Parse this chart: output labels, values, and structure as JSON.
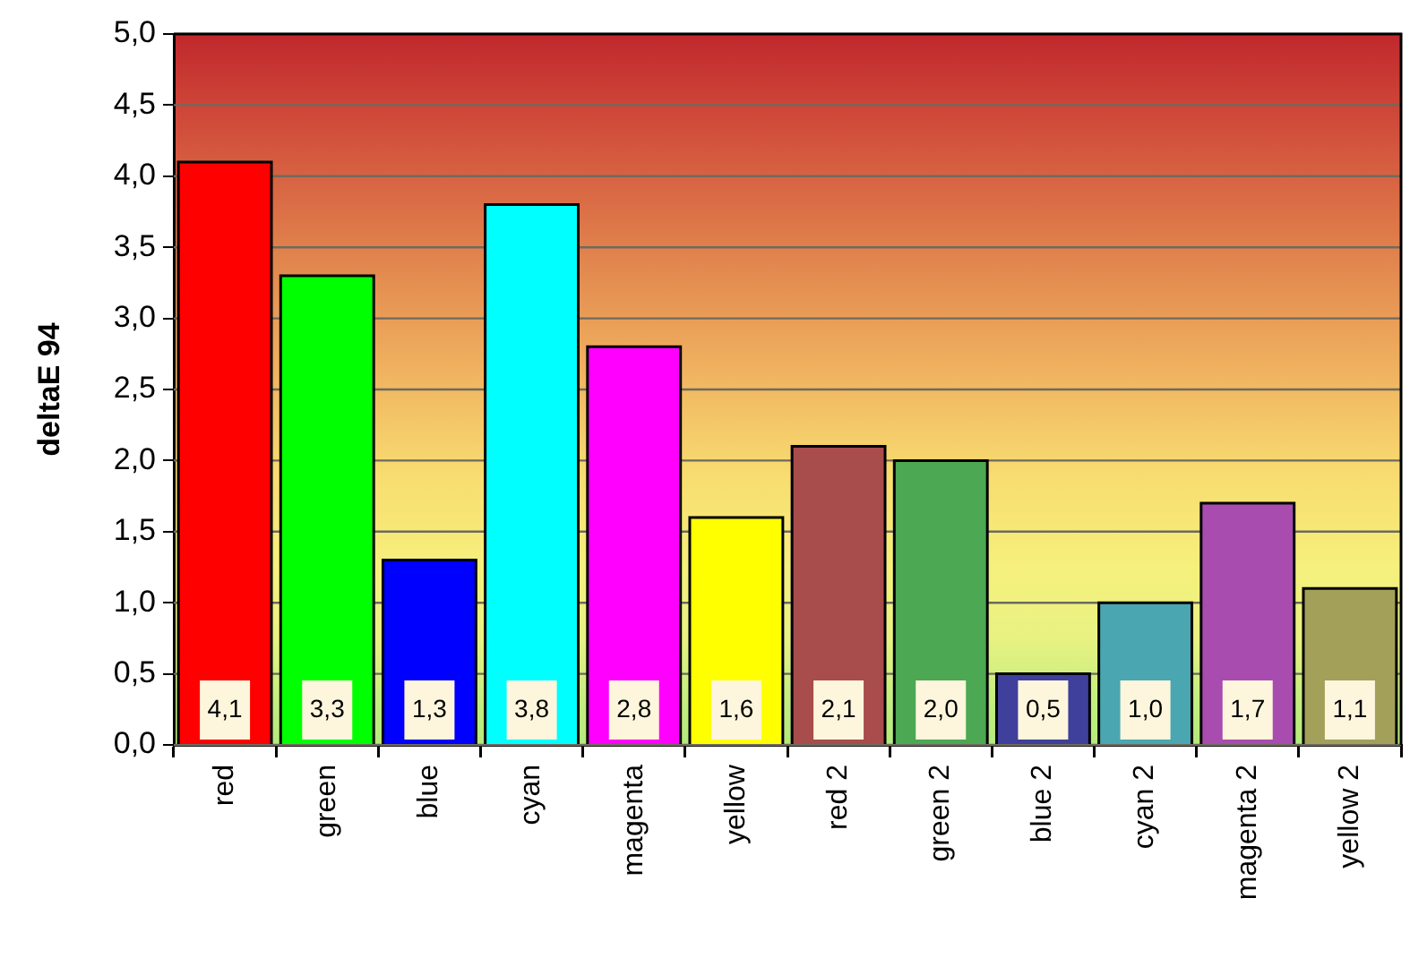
{
  "chart_data": {
    "type": "bar",
    "ylabel": "deltaE 94",
    "categories": [
      "red",
      "green",
      "blue",
      "cyan",
      "magenta",
      "yellow",
      "red 2",
      "green 2",
      "blue 2",
      "cyan 2",
      "magenta 2",
      "yellow 2"
    ],
    "values": [
      4.1,
      3.3,
      1.3,
      3.8,
      2.8,
      1.6,
      2.1,
      2.0,
      0.5,
      1.0,
      1.7,
      1.1
    ],
    "colors": [
      "#ff0000",
      "#00ff00",
      "#0000ff",
      "#00ffff",
      "#ff00ff",
      "#ffff00",
      "#a84c4c",
      "#4ca852",
      "#3f3f9c",
      "#4aa6b0",
      "#a84cb0",
      "#a3a05a"
    ],
    "value_labels": [
      "4,1",
      "3,3",
      "1,3",
      "3,8",
      "2,8",
      "1,6",
      "2,1",
      "2,0",
      "0,5",
      "1,0",
      "1,7",
      "1,1"
    ],
    "ylim": [
      0,
      5
    ],
    "yticks": [
      {
        "value": 0,
        "label": "0,0"
      },
      {
        "value": 0.5,
        "label": "0,5"
      },
      {
        "value": 1,
        "label": "1,0"
      },
      {
        "value": 1.5,
        "label": "1,5"
      },
      {
        "value": 2,
        "label": "2,0"
      },
      {
        "value": 2.5,
        "label": "2,5"
      },
      {
        "value": 3,
        "label": "3,0"
      },
      {
        "value": 3.5,
        "label": "3,5"
      },
      {
        "value": 4,
        "label": "4,0"
      },
      {
        "value": 4.5,
        "label": "4,5"
      },
      {
        "value": 5,
        "label": "5,0"
      }
    ],
    "grid": "y"
  }
}
